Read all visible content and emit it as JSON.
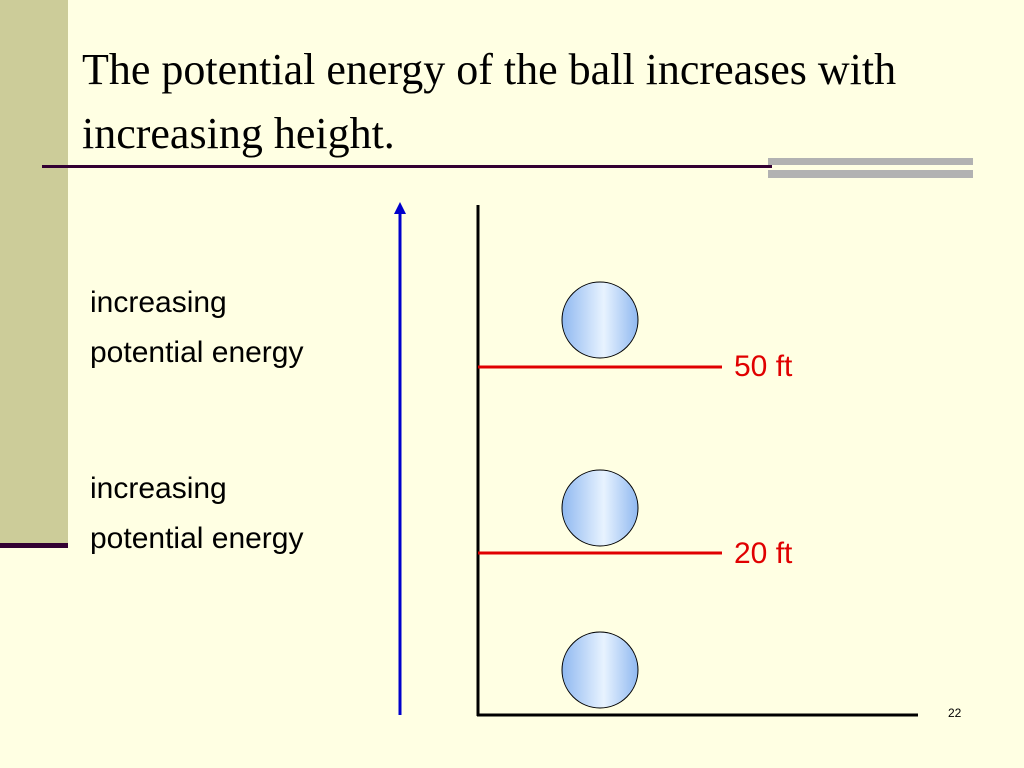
{
  "title": "The potential energy of the ball increases with increasing height.",
  "labels": [
    {
      "lines": [
        "increasing",
        "potential energy"
      ]
    },
    {
      "lines": [
        "increasing",
        "potential energy"
      ]
    }
  ],
  "heights": [
    "50 ft",
    "20 ft"
  ],
  "page_number": "22"
}
